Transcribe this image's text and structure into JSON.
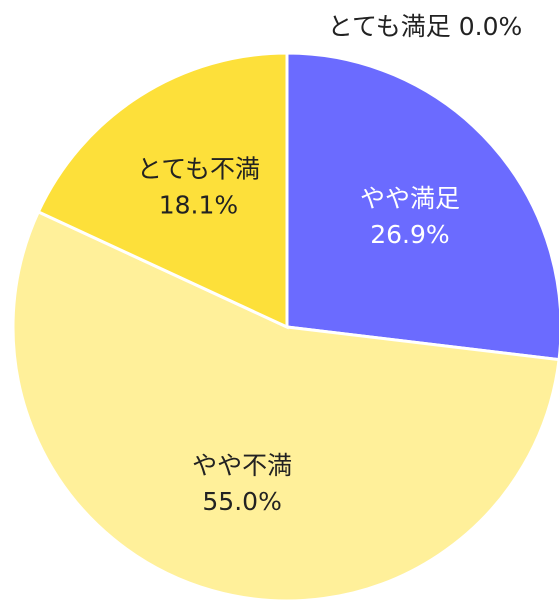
{
  "chart_data": {
    "type": "pie",
    "categories": [
      "とても満足",
      "やや満足",
      "やや不満",
      "とても不満"
    ],
    "values": [
      0.0,
      26.9,
      55.0,
      18.1
    ],
    "value_labels": [
      "0.0%",
      "26.9%",
      "55.0%",
      "18.1%"
    ],
    "colors": [
      "#4a4ae0",
      "#6b6bff",
      "#fff09a",
      "#fde03a"
    ]
  }
}
